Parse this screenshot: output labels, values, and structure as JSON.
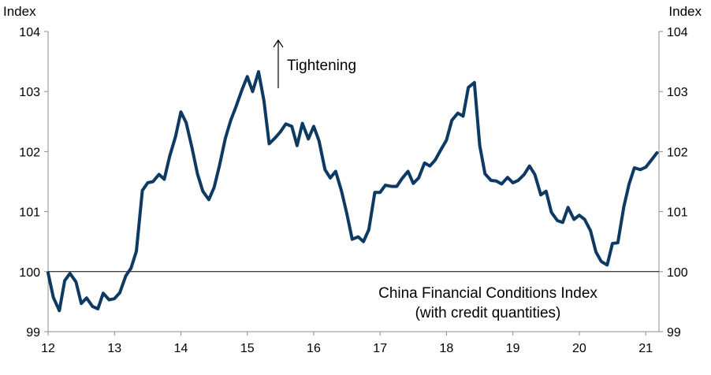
{
  "chart_data": {
    "type": "line",
    "title": "China Financial Conditions Index",
    "subtitle": "(with credit quantities)",
    "y_unit_left": "Index",
    "y_unit_right": "Index",
    "annotation": "Tightening",
    "xlim": [
      12,
      21.2
    ],
    "ylim": [
      99,
      104
    ],
    "x_ticks": [
      12,
      13,
      14,
      15,
      16,
      17,
      18,
      19,
      20,
      21
    ],
    "x_tick_labels": [
      "12",
      "13",
      "14",
      "15",
      "16",
      "17",
      "18",
      "19",
      "20",
      "21"
    ],
    "y_ticks": [
      99,
      100,
      101,
      102,
      103,
      104
    ],
    "y_tick_labels": [
      "99",
      "100",
      "101",
      "102",
      "103",
      "104"
    ],
    "reference_line": 100,
    "colors": {
      "series": "#0d3a63",
      "axis": "#8c8c8c",
      "reference": "#000000"
    },
    "series": [
      {
        "name": "China Financial Conditions Index",
        "x": [
          12.0,
          12.08,
          12.17,
          12.25,
          12.33,
          12.42,
          12.5,
          12.58,
          12.67,
          12.75,
          12.83,
          12.92,
          13.0,
          13.08,
          13.17,
          13.25,
          13.33,
          13.42,
          13.5,
          13.58,
          13.67,
          13.75,
          13.83,
          13.92,
          14.0,
          14.08,
          14.17,
          14.25,
          14.33,
          14.42,
          14.5,
          14.58,
          14.67,
          14.75,
          14.83,
          14.92,
          15.0,
          15.08,
          15.17,
          15.25,
          15.33,
          15.42,
          15.5,
          15.58,
          15.67,
          15.75,
          15.83,
          15.92,
          16.0,
          16.08,
          16.17,
          16.25,
          16.33,
          16.42,
          16.5,
          16.58,
          16.67,
          16.75,
          16.83,
          16.92,
          17.0,
          17.08,
          17.17,
          17.25,
          17.33,
          17.42,
          17.5,
          17.58,
          17.67,
          17.75,
          17.83,
          17.92,
          18.0,
          18.08,
          18.17,
          18.25,
          18.33,
          18.42,
          18.5,
          18.58,
          18.67,
          18.75,
          18.83,
          18.92,
          19.0,
          19.08,
          19.17,
          19.25,
          19.33,
          19.42,
          19.5,
          19.58,
          19.67,
          19.75,
          19.83,
          19.92,
          20.0,
          20.08,
          20.17,
          20.25,
          20.33,
          20.42,
          20.5,
          20.58,
          20.67,
          20.75,
          20.83,
          20.92,
          21.0,
          21.08,
          21.17
        ],
        "values": [
          99.98,
          99.57,
          99.35,
          99.85,
          99.97,
          99.83,
          99.47,
          99.56,
          99.42,
          99.38,
          99.64,
          99.53,
          99.55,
          99.65,
          99.93,
          100.06,
          100.34,
          101.35,
          101.48,
          101.5,
          101.62,
          101.54,
          101.92,
          102.25,
          102.66,
          102.48,
          102.05,
          101.63,
          101.34,
          101.2,
          101.4,
          101.76,
          102.22,
          102.52,
          102.75,
          103.03,
          103.25,
          103.0,
          103.33,
          102.85,
          102.13,
          102.23,
          102.33,
          102.46,
          102.42,
          102.1,
          102.47,
          102.21,
          102.42,
          102.18,
          101.7,
          101.56,
          101.67,
          101.34,
          100.96,
          100.54,
          100.58,
          100.5,
          100.7,
          101.32,
          101.32,
          101.44,
          101.42,
          101.42,
          101.55,
          101.67,
          101.47,
          101.56,
          101.81,
          101.76,
          101.86,
          102.04,
          102.19,
          102.52,
          102.64,
          102.59,
          103.07,
          103.15,
          102.1,
          101.63,
          101.52,
          101.51,
          101.46,
          101.57,
          101.48,
          101.52,
          101.62,
          101.76,
          101.62,
          101.28,
          101.34,
          100.99,
          100.85,
          100.82,
          101.07,
          100.87,
          100.94,
          100.87,
          100.68,
          100.33,
          100.17,
          100.11,
          100.47,
          100.48,
          101.08,
          101.46,
          101.73,
          101.7,
          101.74,
          101.85,
          101.98
        ]
      }
    ]
  }
}
